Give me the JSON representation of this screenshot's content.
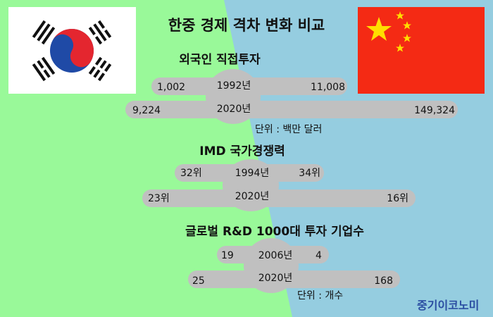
{
  "title": "한중 경제 격차 변화 비교",
  "colors": {
    "korea_side": "#99f999",
    "china_side": "#95cde0",
    "bar": "#c0c0c0",
    "brand": "#2b4ea2",
    "china_flag": "#f42a14"
  },
  "sections": [
    {
      "title": "외국인 직접투자",
      "unit": "단위 : 백만 달러",
      "rows": [
        {
          "year": "1992년",
          "korea": "1,002",
          "china": "11,008"
        },
        {
          "year": "2020년",
          "korea": "9,224",
          "china": "149,324"
        }
      ]
    },
    {
      "title": "IMD 국가경쟁력",
      "rows": [
        {
          "year": "1994년",
          "korea": "32위",
          "china": "34위"
        },
        {
          "year": "2020년",
          "korea": "23위",
          "china": "16위"
        }
      ]
    },
    {
      "title": "글로벌 R&D 1000대 투자 기업수",
      "unit": "단위 : 개수",
      "rows": [
        {
          "year": "2006년",
          "korea": "19",
          "china": "4"
        },
        {
          "year": "2020년",
          "korea": "25",
          "china": "168"
        }
      ]
    }
  ],
  "brand": "중기이코노미"
}
